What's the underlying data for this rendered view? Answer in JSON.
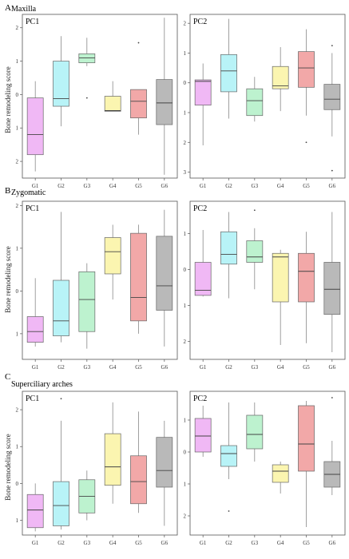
{
  "rows": [
    {
      "letter": "A",
      "title": "Maxilla"
    },
    {
      "letter": "B",
      "title": "Zygomatic"
    },
    {
      "letter": "C",
      "title": "Superciliary arches"
    }
  ],
  "ylabel": "Bone remodeling score",
  "colors": [
    "#f0b8f5",
    "#b8f3f7",
    "#bdf2cf",
    "#fbf5b0",
    "#f2a8a8",
    "#b9b9b9"
  ],
  "chart_data": [
    {
      "type": "box",
      "row": 0,
      "panel_label": "PC1",
      "categories": [
        "G1",
        "G2",
        "G3",
        "G4",
        "G5",
        "G6"
      ],
      "yticks": [
        2,
        1,
        0,
        -1,
        -2
      ],
      "ytick_labels": [
        "2",
        "1",
        "0",
        "1",
        "2"
      ],
      "ylim": [
        -2.5,
        2.4
      ],
      "boxes": [
        {
          "min": -2.3,
          "q1": -1.8,
          "median": -1.2,
          "q3": -0.1,
          "max": 0.4,
          "outliers": []
        },
        {
          "min": -0.95,
          "q1": -0.35,
          "median": -0.12,
          "q3": 1.0,
          "max": 1.75,
          "outliers": []
        },
        {
          "min": 0.85,
          "q1": 0.95,
          "median": 1.1,
          "q3": 1.22,
          "max": 1.7,
          "outliers": [
            -0.1
          ]
        },
        {
          "min": -0.5,
          "q1": -0.5,
          "median": -0.48,
          "q3": -0.05,
          "max": 0.4,
          "outliers": []
        },
        {
          "min": -1.2,
          "q1": -0.7,
          "median": -0.2,
          "q3": 0.15,
          "max": 0.15,
          "outliers": [
            1.55
          ]
        },
        {
          "min": -2.4,
          "q1": -0.9,
          "median": -0.25,
          "q3": 0.45,
          "max": 2.3,
          "outliers": []
        }
      ]
    },
    {
      "type": "box",
      "row": 0,
      "panel_label": "PC2",
      "categories": [
        "G1",
        "G2",
        "G3",
        "G4",
        "G5",
        "G6"
      ],
      "yticks": [
        2,
        1,
        0,
        -1,
        -2,
        -3
      ],
      "ytick_labels": [
        "2",
        "1",
        "0",
        "1",
        "2",
        "3"
      ],
      "ylim": [
        -3.2,
        2.3
      ],
      "boxes": [
        {
          "min": -2.1,
          "q1": -0.75,
          "median": 0.05,
          "q3": 0.1,
          "max": 0.65,
          "outliers": []
        },
        {
          "min": -1.2,
          "q1": -0.3,
          "median": 0.4,
          "q3": 0.95,
          "max": 2.15,
          "outliers": []
        },
        {
          "min": -1.3,
          "q1": -1.1,
          "median": -0.6,
          "q3": -0.2,
          "max": 0.2,
          "outliers": []
        },
        {
          "min": -0.95,
          "q1": -0.2,
          "median": -0.1,
          "q3": 0.55,
          "max": 1.2,
          "outliers": []
        },
        {
          "min": -1.1,
          "q1": -0.15,
          "median": 0.5,
          "q3": 1.05,
          "max": 1.8,
          "outliers": [
            -2.0
          ]
        },
        {
          "min": -1.8,
          "q1": -0.9,
          "median": -0.55,
          "q3": -0.05,
          "max": 1.0,
          "outliers": [
            -2.95,
            1.25
          ]
        }
      ]
    },
    {
      "type": "box",
      "row": 1,
      "panel_label": "PC1",
      "categories": [
        "G1",
        "G2",
        "G3",
        "G4",
        "G5",
        "G6"
      ],
      "yticks": [
        2,
        1,
        0,
        -1
      ],
      "ytick_labels": [
        "2",
        "1",
        "0",
        "1"
      ],
      "ylim": [
        -1.6,
        2.1
      ],
      "boxes": [
        {
          "min": -1.3,
          "q1": -1.2,
          "median": -0.95,
          "q3": -0.6,
          "max": 0.3,
          "outliers": []
        },
        {
          "min": -1.2,
          "q1": -1.05,
          "median": -0.7,
          "q3": 0.25,
          "max": 1.85,
          "outliers": []
        },
        {
          "min": -1.35,
          "q1": -0.95,
          "median": -0.2,
          "q3": 0.45,
          "max": 0.65,
          "outliers": []
        },
        {
          "min": -0.2,
          "q1": 0.4,
          "median": 0.92,
          "q3": 1.25,
          "max": 1.55,
          "outliers": []
        },
        {
          "min": -1.0,
          "q1": -0.7,
          "median": -0.15,
          "q3": 1.35,
          "max": 1.55,
          "outliers": []
        },
        {
          "min": -1.3,
          "q1": -0.45,
          "median": 0.12,
          "q3": 1.28,
          "max": 1.9,
          "outliers": []
        }
      ]
    },
    {
      "type": "box",
      "row": 1,
      "panel_label": "PC2",
      "categories": [
        "G1",
        "G2",
        "G3",
        "G4",
        "G5",
        "G6"
      ],
      "yticks": [
        1,
        0,
        -1,
        -2
      ],
      "ytick_labels": [
        "1",
        "0",
        "1",
        "2"
      ],
      "ylim": [
        -2.5,
        1.9
      ],
      "boxes": [
        {
          "min": -0.75,
          "q1": -0.72,
          "median": -0.58,
          "q3": 0.2,
          "max": 1.1,
          "outliers": []
        },
        {
          "min": -0.8,
          "q1": 0.15,
          "median": 0.42,
          "q3": 1.05,
          "max": 1.6,
          "outliers": []
        },
        {
          "min": -0.55,
          "q1": 0.2,
          "median": 0.35,
          "q3": 0.8,
          "max": 1.15,
          "outliers": [
            1.65
          ]
        },
        {
          "min": -2.1,
          "q1": -0.9,
          "median": 0.35,
          "q3": 0.45,
          "max": 0.55,
          "outliers": []
        },
        {
          "min": -2.05,
          "q1": -0.9,
          "median": -0.05,
          "q3": 0.45,
          "max": 1.05,
          "outliers": []
        },
        {
          "min": -2.3,
          "q1": -1.25,
          "median": -0.55,
          "q3": 0.2,
          "max": 1.6,
          "outliers": []
        }
      ]
    },
    {
      "type": "box",
      "row": 2,
      "panel_label": "PC1",
      "categories": [
        "G1",
        "G2",
        "G3",
        "G4",
        "G5",
        "G6"
      ],
      "yticks": [
        2,
        1,
        0,
        -1
      ],
      "ytick_labels": [
        "2",
        "1",
        "0",
        "1"
      ],
      "ylim": [
        -1.4,
        2.5
      ],
      "boxes": [
        {
          "min": -1.3,
          "q1": -1.2,
          "median": -0.72,
          "q3": -0.3,
          "max": 0.0,
          "outliers": []
        },
        {
          "min": -1.25,
          "q1": -1.15,
          "median": -0.6,
          "q3": 0.05,
          "max": 1.7,
          "outliers": [
            2.3
          ]
        },
        {
          "min": -1.0,
          "q1": -0.8,
          "median": -0.35,
          "q3": 0.1,
          "max": 0.35,
          "outliers": []
        },
        {
          "min": -0.55,
          "q1": -0.05,
          "median": 0.45,
          "q3": 1.35,
          "max": 2.2,
          "outliers": []
        },
        {
          "min": -0.8,
          "q1": -0.55,
          "median": 0.05,
          "q3": 0.75,
          "max": 1.95,
          "outliers": []
        },
        {
          "min": -1.15,
          "q1": -0.1,
          "median": 0.35,
          "q3": 1.25,
          "max": 1.7,
          "outliers": []
        }
      ]
    },
    {
      "type": "box",
      "row": 2,
      "panel_label": "PC2",
      "categories": [
        "G1",
        "G2",
        "G3",
        "G4",
        "G5",
        "G6"
      ],
      "yticks": [
        1,
        0,
        -1,
        -2
      ],
      "ytick_labels": [
        "1",
        "0",
        "1",
        "2"
      ],
      "ylim": [
        -2.6,
        1.9
      ],
      "boxes": [
        {
          "min": -0.15,
          "q1": 0.0,
          "median": 0.5,
          "q3": 1.05,
          "max": 1.45,
          "outliers": []
        },
        {
          "min": -0.85,
          "q1": -0.45,
          "median": -0.05,
          "q3": 0.2,
          "max": 1.55,
          "outliers": [
            -1.85
          ]
        },
        {
          "min": -0.3,
          "q1": 0.1,
          "median": 0.55,
          "q3": 1.15,
          "max": 1.55,
          "outliers": []
        },
        {
          "min": -1.3,
          "q1": -0.95,
          "median": -0.6,
          "q3": -0.4,
          "max": -0.3,
          "outliers": []
        },
        {
          "min": -2.35,
          "q1": -0.6,
          "median": 0.25,
          "q3": 1.45,
          "max": 1.6,
          "outliers": []
        },
        {
          "min": -1.35,
          "q1": -1.1,
          "median": -0.7,
          "q3": -0.3,
          "max": 0.35,
          "outliers": [
            1.7
          ]
        }
      ]
    }
  ]
}
